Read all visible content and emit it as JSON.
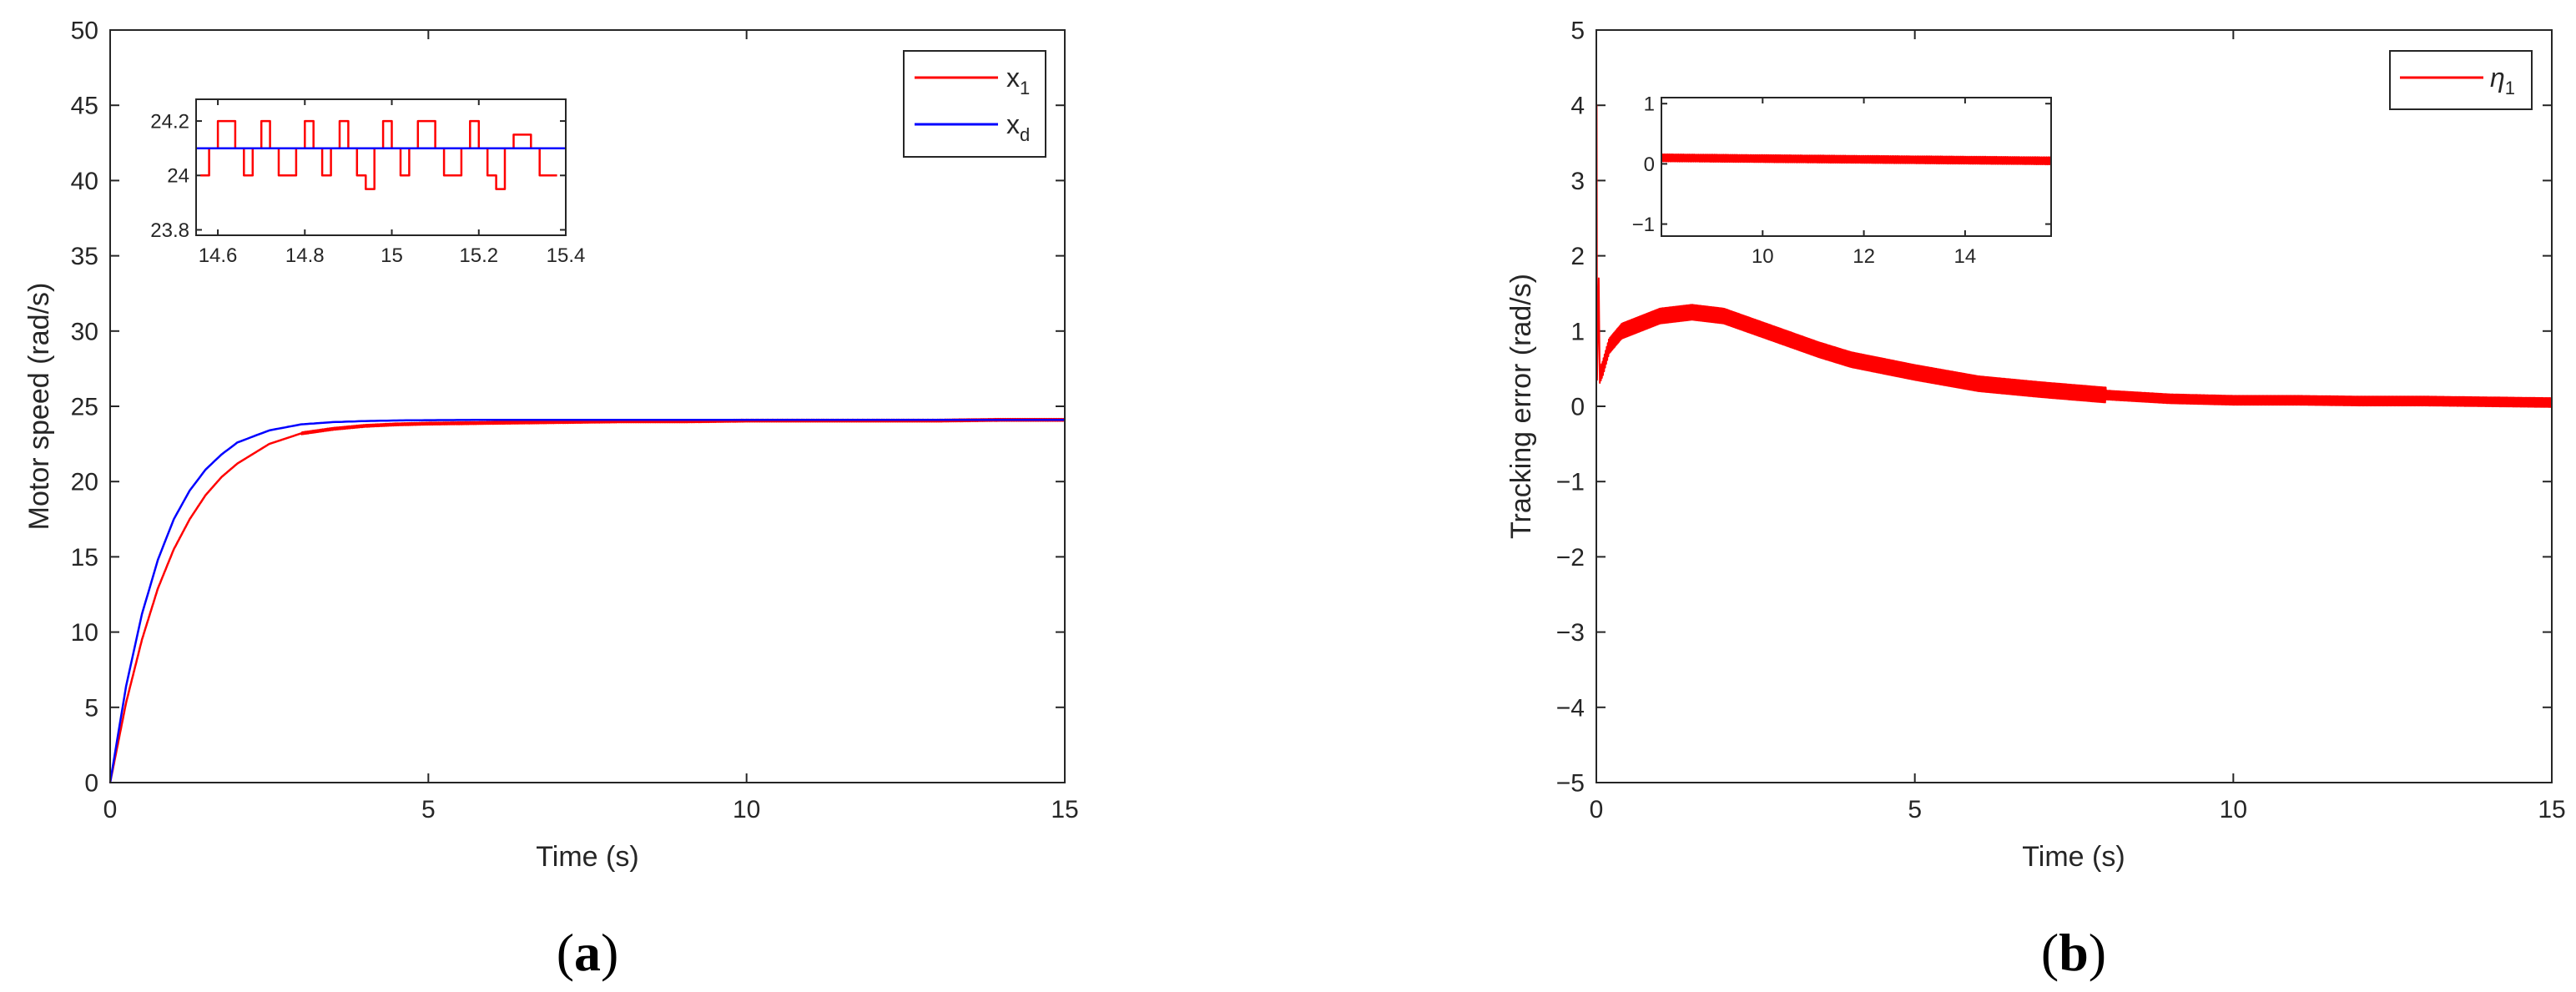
{
  "colors": {
    "x1": "#ff0000",
    "xd": "#0000ff",
    "eta": "#ff0000",
    "axis": "#262626"
  },
  "panels": [
    {
      "label_open": "(",
      "label_letter": "a",
      "label_close": ")"
    },
    {
      "label_open": "(",
      "label_letter": "b",
      "label_close": ")"
    }
  ],
  "chart_data": [
    {
      "type": "line",
      "xlabel": "Time (s)",
      "ylabel": "Motor speed (rad/s)",
      "xlim": [
        0,
        15
      ],
      "ylim": [
        0,
        50
      ],
      "xticks": [
        0,
        5,
        10,
        15
      ],
      "yticks": [
        0,
        5,
        10,
        15,
        20,
        25,
        30,
        35,
        40,
        45,
        50
      ],
      "legend": "top-right",
      "legend_entries": [
        {
          "base": "x",
          "sub": "1"
        },
        {
          "base": "x",
          "sub": "d"
        }
      ],
      "series": [
        {
          "name": "x_1",
          "description": "actual speed, first-order rise to ~24 with small ripple",
          "x": [
            0,
            0.25,
            0.5,
            0.75,
            1,
            1.25,
            1.5,
            1.75,
            2,
            2.5,
            3,
            3.5,
            4,
            4.5,
            5,
            6,
            7,
            8,
            9,
            10,
            11,
            12,
            13,
            14,
            15
          ],
          "y": [
            0,
            5.3,
            9.5,
            12.9,
            15.5,
            17.5,
            19.1,
            20.3,
            21.2,
            22.5,
            23.2,
            23.5,
            23.7,
            23.8,
            23.85,
            23.9,
            23.95,
            24.0,
            24.0,
            24.05,
            24.05,
            24.05,
            24.05,
            24.1,
            24.1
          ]
        },
        {
          "name": "x_d",
          "description": "desired speed, faster first-order rise to 24.1",
          "x": [
            0,
            0.25,
            0.5,
            0.75,
            1,
            1.25,
            1.5,
            1.75,
            2,
            2.5,
            3,
            3.5,
            4,
            4.5,
            5,
            6,
            7,
            8,
            9,
            10,
            11,
            12,
            13,
            14,
            15
          ],
          "y": [
            0,
            6.4,
            11.2,
            14.8,
            17.5,
            19.4,
            20.8,
            21.8,
            22.6,
            23.4,
            23.8,
            23.95,
            24.02,
            24.06,
            24.08,
            24.1,
            24.1,
            24.1,
            24.1,
            24.1,
            24.1,
            24.1,
            24.1,
            24.1,
            24.1
          ]
        }
      ],
      "inset": {
        "xlim": [
          14.55,
          15.4
        ],
        "ylim": [
          23.78,
          24.28
        ],
        "xticks": [
          14.6,
          14.8,
          15,
          15.2,
          15.4
        ],
        "yticks": [
          23.8,
          24,
          24.2
        ],
        "series": [
          {
            "name": "x_1",
            "step": 0.02,
            "x0": 14.56,
            "y": [
              24.0,
              24.1,
              24.2,
              24.2,
              24.1,
              24.0,
              24.1,
              24.2,
              24.1,
              24.0,
              24.0,
              24.1,
              24.2,
              24.1,
              24.0,
              24.1,
              24.2,
              24.1,
              24.0,
              23.95,
              24.1,
              24.2,
              24.1,
              24.0,
              24.1,
              24.2,
              24.2,
              24.1,
              24.0,
              24.0,
              24.1,
              24.2,
              24.1,
              24.0,
              23.95,
              24.1,
              24.15,
              24.15,
              24.1,
              24.0,
              24.0
            ]
          },
          {
            "name": "x_d",
            "x": [
              14.55,
              15.4
            ],
            "y": [
              24.1,
              24.1
            ]
          }
        ]
      }
    },
    {
      "type": "line",
      "xlabel": "Time (s)",
      "ylabel": "Tracking error (rad/s)",
      "xlim": [
        0,
        15
      ],
      "ylim": [
        -5,
        5
      ],
      "xticks": [
        0,
        5,
        10,
        15
      ],
      "yticks": [
        -5,
        -4,
        -3,
        -2,
        -1,
        0,
        1,
        2,
        3,
        4,
        5
      ],
      "legend": "top-right",
      "legend_entries": [
        {
          "base": "η",
          "sub": "1"
        }
      ],
      "series": [
        {
          "name": "eta_1",
          "description": "initial spike to 4, then rise to ~1.25 near t=1.5 and decay to ~0.05 with oscillation",
          "x": [
            0,
            0.02,
            0.05,
            0.1,
            0.2,
            0.4,
            0.7,
            1.0,
            1.5,
            2.0,
            2.5,
            3.0,
            3.5,
            4.0,
            5.0,
            6.0,
            7.0,
            8.0,
            9.0,
            10.0,
            11.0,
            12.0,
            13.0,
            14.0,
            15.0
          ],
          "y": [
            0.3,
            4.0,
            0.4,
            0.5,
            0.8,
            1.0,
            1.1,
            1.2,
            1.25,
            1.2,
            1.05,
            0.9,
            0.75,
            0.62,
            0.45,
            0.3,
            0.22,
            0.15,
            0.1,
            0.08,
            0.08,
            0.07,
            0.07,
            0.06,
            0.05
          ],
          "oscillation_amplitude": 0.1
        }
      ],
      "inset": {
        "xlim": [
          8,
          15.7
        ],
        "ylim": [
          -1.2,
          1.1
        ],
        "xticks": [
          10,
          12,
          14
        ],
        "yticks": [
          -1,
          0,
          1
        ],
        "series": [
          {
            "name": "eta_1",
            "x": [
              8,
              15.7
            ],
            "y": [
              0.1,
              0.05
            ],
            "oscillation_amplitude": 0.06
          }
        ]
      }
    }
  ]
}
